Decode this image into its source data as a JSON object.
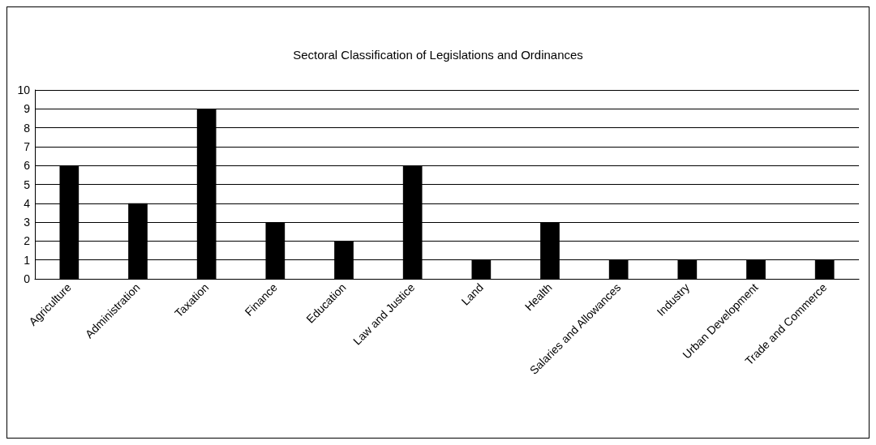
{
  "chart_data": {
    "type": "bar",
    "title": "Sectoral Classification of Legislations and Ordinances",
    "categories": [
      "Agriculture",
      "Administration",
      "Taxation",
      "Finance",
      "Education",
      "Law and Justice",
      "Land",
      "Health",
      "Salaries and Allowances",
      "Industry",
      "Urban Development",
      "Trade and Commerce"
    ],
    "values": [
      6,
      4,
      9,
      3,
      2,
      6,
      1,
      3,
      1,
      1,
      1,
      1
    ],
    "color": "#000000",
    "ylim": [
      0,
      10
    ],
    "yticks": [
      0,
      1,
      2,
      3,
      4,
      5,
      6,
      7,
      8,
      9,
      10
    ],
    "grid": true
  }
}
